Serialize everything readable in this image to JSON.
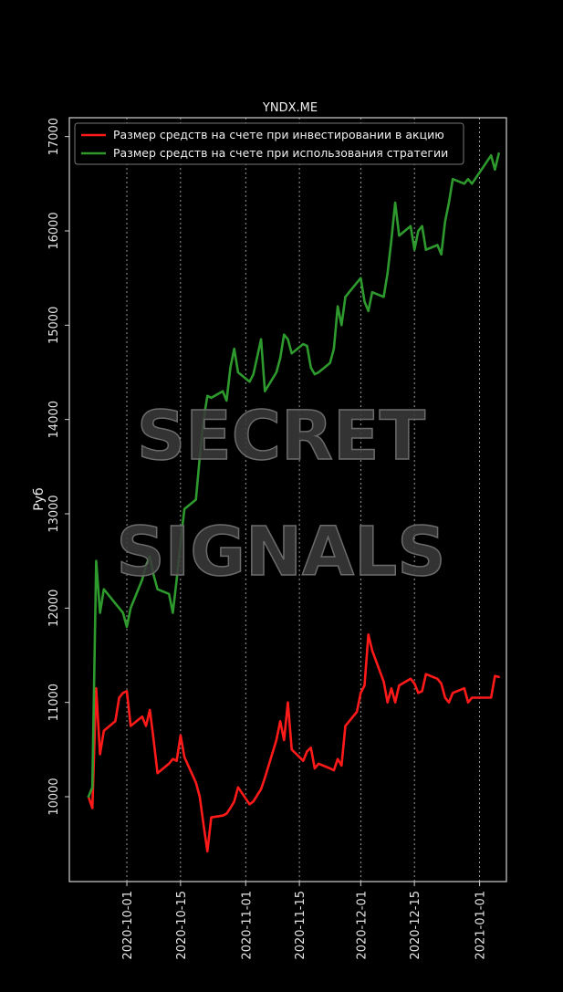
{
  "watermark": {
    "line1": "SECRET",
    "line2": "SIGNALS"
  },
  "colors": {
    "background": "#000000",
    "axes": "#d0d0d0",
    "grid": "#bdbdbd",
    "stock": "#ff1a1a",
    "strategy": "#2e9a2e"
  },
  "chart_data": {
    "type": "line",
    "title": "YNDX.ME",
    "xlabel": "",
    "ylabel": "Руб",
    "grid": "vertical dotted at x ticks",
    "legend_placement": "upper-left",
    "ylim": [
      9100,
      17200
    ],
    "xlim": [
      "2020-09-16",
      "2021-01-08"
    ],
    "yticks": [
      10000,
      11000,
      12000,
      13000,
      14000,
      15000,
      16000,
      17000
    ],
    "xticks": [
      "2020-10-01",
      "2020-10-15",
      "2020-11-01",
      "2020-11-15",
      "2020-12-01",
      "2020-12-15",
      "2021-01-01"
    ],
    "series": [
      {
        "name": "Размер средств на счете при инвестировании в акцию",
        "color": "#ff1a1a",
        "x": [
          "2020-09-21",
          "2020-09-22",
          "2020-09-23",
          "2020-09-24",
          "2020-09-25",
          "2020-09-28",
          "2020-09-29",
          "2020-09-30",
          "2020-10-01",
          "2020-10-02",
          "2020-10-05",
          "2020-10-06",
          "2020-10-07",
          "2020-10-08",
          "2020-10-09",
          "2020-10-12",
          "2020-10-13",
          "2020-10-14",
          "2020-10-15",
          "2020-10-16",
          "2020-10-19",
          "2020-10-20",
          "2020-10-21",
          "2020-10-22",
          "2020-10-23",
          "2020-10-26",
          "2020-10-27",
          "2020-10-28",
          "2020-10-29",
          "2020-10-30",
          "2020-11-02",
          "2020-11-03",
          "2020-11-05",
          "2020-11-06",
          "2020-11-09",
          "2020-11-10",
          "2020-11-11",
          "2020-11-12",
          "2020-11-13",
          "2020-11-16",
          "2020-11-17",
          "2020-11-18",
          "2020-11-19",
          "2020-11-20",
          "2020-11-23",
          "2020-11-24",
          "2020-11-25",
          "2020-11-26",
          "2020-11-27",
          "2020-11-30",
          "2020-12-01",
          "2020-12-02",
          "2020-12-03",
          "2020-12-04",
          "2020-12-07",
          "2020-12-08",
          "2020-12-09",
          "2020-12-10",
          "2020-12-11",
          "2020-12-14",
          "2020-12-15",
          "2020-12-16",
          "2020-12-17",
          "2020-12-18",
          "2020-12-21",
          "2020-12-22",
          "2020-12-23",
          "2020-12-24",
          "2020-12-25",
          "2020-12-28",
          "2020-12-29",
          "2020-12-30",
          "2021-01-04",
          "2021-01-05",
          "2021-01-06"
        ],
        "values": [
          10000,
          9880,
          11150,
          10450,
          10700,
          10800,
          11050,
          11100,
          11120,
          10750,
          10850,
          10750,
          10920,
          10600,
          10250,
          10350,
          10400,
          10380,
          10650,
          10420,
          10150,
          10000,
          9700,
          9420,
          9780,
          9800,
          9820,
          9880,
          9950,
          10100,
          9920,
          9950,
          10080,
          10200,
          10600,
          10800,
          10600,
          11000,
          10500,
          10380,
          10480,
          10520,
          10300,
          10350,
          10300,
          10280,
          10400,
          10330,
          10750,
          10900,
          11100,
          11180,
          11720,
          11550,
          11220,
          11000,
          11150,
          11000,
          11180,
          11250,
          11200,
          11100,
          11120,
          11300,
          11250,
          11200,
          11050,
          11000,
          11100,
          11150,
          11000,
          11050,
          11050,
          11280,
          11270
        ]
      },
      {
        "name": "Размер средств на счете при использования стратегии",
        "color": "#2e9a2e",
        "x": [
          "2020-09-21",
          "2020-09-22",
          "2020-09-23",
          "2020-09-24",
          "2020-09-25",
          "2020-09-28",
          "2020-09-29",
          "2020-09-30",
          "2020-10-01",
          "2020-10-02",
          "2020-10-05",
          "2020-10-06",
          "2020-10-07",
          "2020-10-08",
          "2020-10-09",
          "2020-10-12",
          "2020-10-13",
          "2020-10-14",
          "2020-10-15",
          "2020-10-16",
          "2020-10-19",
          "2020-10-20",
          "2020-10-21",
          "2020-10-22",
          "2020-10-23",
          "2020-10-26",
          "2020-10-27",
          "2020-10-28",
          "2020-10-29",
          "2020-10-30",
          "2020-11-02",
          "2020-11-03",
          "2020-11-05",
          "2020-11-06",
          "2020-11-09",
          "2020-11-10",
          "2020-11-11",
          "2020-11-12",
          "2020-11-13",
          "2020-11-16",
          "2020-11-17",
          "2020-11-18",
          "2020-11-19",
          "2020-11-20",
          "2020-11-23",
          "2020-11-24",
          "2020-11-25",
          "2020-11-26",
          "2020-11-27",
          "2020-11-30",
          "2020-12-01",
          "2020-12-02",
          "2020-12-03",
          "2020-12-04",
          "2020-12-07",
          "2020-12-08",
          "2020-12-09",
          "2020-12-10",
          "2020-12-11",
          "2020-12-14",
          "2020-12-15",
          "2020-12-16",
          "2020-12-17",
          "2020-12-18",
          "2020-12-21",
          "2020-12-22",
          "2020-12-23",
          "2020-12-24",
          "2020-12-25",
          "2020-12-28",
          "2020-12-29",
          "2020-12-30",
          "2021-01-04",
          "2021-01-05",
          "2021-01-06"
        ],
        "values": [
          10000,
          10100,
          12500,
          11950,
          12200,
          12050,
          12000,
          11950,
          11800,
          12000,
          12300,
          12450,
          12550,
          12350,
          12200,
          12150,
          11950,
          12300,
          12700,
          13050,
          13150,
          13600,
          14000,
          14250,
          14230,
          14300,
          14200,
          14550,
          14750,
          14500,
          14400,
          14480,
          14850,
          14300,
          14500,
          14650,
          14900,
          14850,
          14700,
          14800,
          14780,
          14550,
          14480,
          14500,
          14600,
          14750,
          15200,
          15000,
          15300,
          15450,
          15500,
          15250,
          15150,
          15350,
          15300,
          15550,
          15900,
          16300,
          15950,
          16050,
          15800,
          16000,
          16050,
          15800,
          15850,
          15750,
          16100,
          16300,
          16550,
          16500,
          16550,
          16500,
          16800,
          16650,
          16820
        ]
      }
    ]
  }
}
